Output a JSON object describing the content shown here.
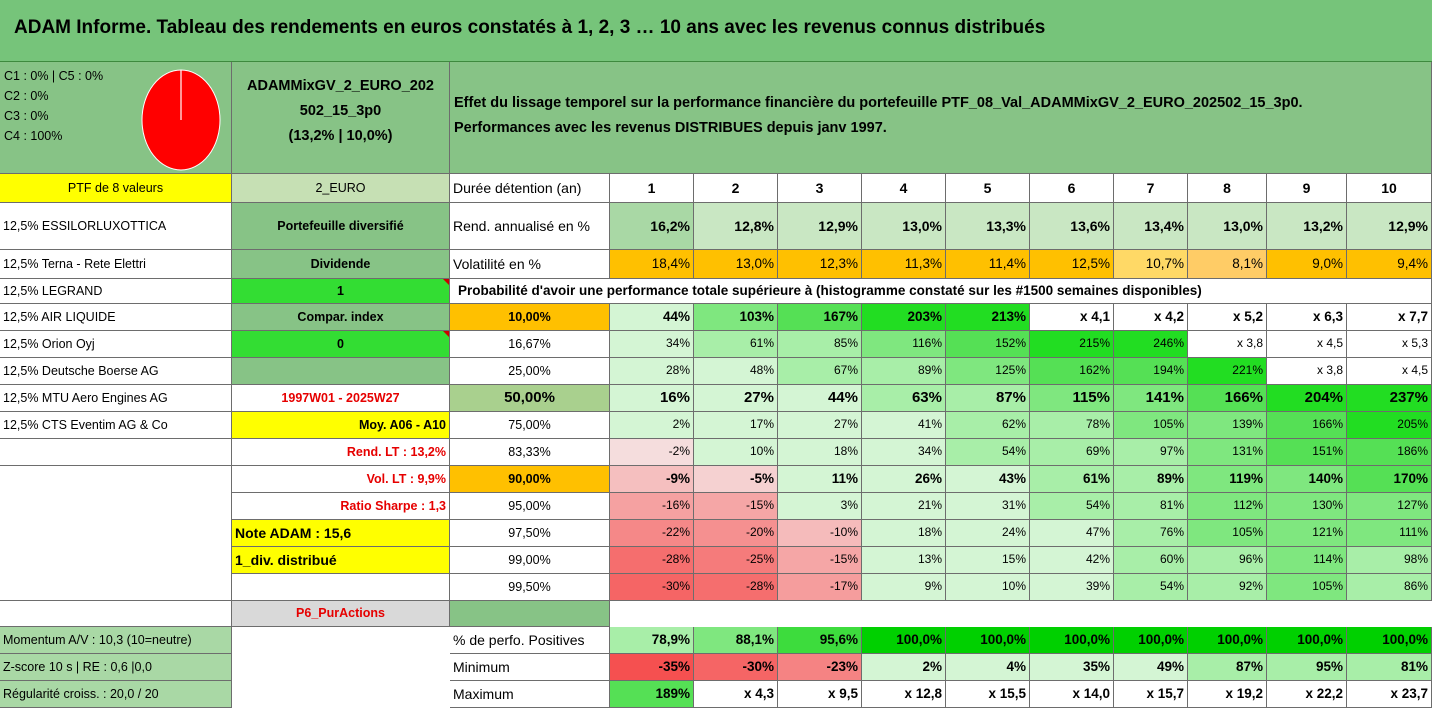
{
  "title": "ADAM Informe. Tableau des rendements en euros constatés à 1, 2, 3 … 10 ans avec les revenus connus distribués",
  "info": {
    "lines": [
      "C1 : 0% | C5 : 0%",
      "C2 : 0%",
      "C3 : 0%",
      "C4 : 100%"
    ],
    "pie_color": "#ff0000",
    "pie_c4_share": 1.0
  },
  "portfolio": {
    "name_line1": "ADAMMixGV_2_EURO_202",
    "name_line2": "502_15_3p0",
    "name_line3": "(13,2% | 10,0%)"
  },
  "header_text": {
    "line1": "Effet du lissage temporel sur la performance financière du portefeuille PTF_08_Val_ADAMMixGV_2_EURO_202502_15_3p0.",
    "line2": "Performances avec les revenus DISTRIBUES depuis janv 1997."
  },
  "col_a": [
    "PTF de 8 valeurs",
    "12,5% ESSILORLUXOTTICA",
    "12,5% Terna - Rete Elettri",
    "12,5% LEGRAND",
    "12,5% AIR LIQUIDE",
    "12,5% Orion Oyj",
    "12,5% Deutsche Boerse AG",
    "12,5% MTU Aero Engines AG",
    "12,5% CTS Eventim AG & Co",
    "",
    "",
    "",
    "",
    "",
    "",
    "",
    "Momentum A/V : 10,3 (10=neutre)",
    "Z-score 10 s | RE : 0,6 |0,0",
    "Régularité croiss. : 20,0 / 20"
  ],
  "col_b": [
    "2_EURO",
    "Portefeuille diversifié",
    "Dividende",
    "1",
    "Compar. index",
    "0",
    "",
    "1997W01 - 2025W27",
    "Moy. A06 - A10",
    "Rend. LT : 13,2%",
    "Vol. LT : 9,9%",
    "Ratio Sharpe : 1,3",
    "Note ADAM : 15,6",
    "1_div. distribué",
    "",
    "P6_PurActions"
  ],
  "durations": {
    "label": "Durée détention (an)",
    "values": [
      "1",
      "2",
      "3",
      "4",
      "5",
      "6",
      "7",
      "8",
      "9",
      "10"
    ]
  },
  "rend": {
    "label": "Rend. annualisé en %",
    "values": [
      "16,2%",
      "12,8%",
      "12,9%",
      "13,0%",
      "13,3%",
      "13,6%",
      "13,4%",
      "13,0%",
      "13,2%",
      "12,9%"
    ]
  },
  "vol": {
    "label": "Volatilité en %",
    "values": [
      "18,4%",
      "13,0%",
      "12,3%",
      "11,3%",
      "11,4%",
      "12,5%",
      "10,7%",
      "8,1%",
      "9,0%",
      "9,4%"
    ]
  },
  "prob_caption": "Probabilité d'avoir une performance totale supérieure à (histogramme constaté sur les #1500 semaines disponibles)",
  "probabilities": [
    {
      "label": "10,00%",
      "values": [
        "44%",
        "103%",
        "167%",
        "203%",
        "213%",
        "x 4,1",
        "x 4,2",
        "x 5,2",
        "x 6,3",
        "x 7,7"
      ]
    },
    {
      "label": "16,67%",
      "values": [
        "34%",
        "61%",
        "85%",
        "116%",
        "152%",
        "215%",
        "246%",
        "x 3,8",
        "x 4,5",
        "x 5,3"
      ]
    },
    {
      "label": "25,00%",
      "values": [
        "28%",
        "48%",
        "67%",
        "89%",
        "125%",
        "162%",
        "194%",
        "221%",
        "x 3,8",
        "x 4,5"
      ]
    },
    {
      "label": "50,00%",
      "values": [
        "16%",
        "27%",
        "44%",
        "63%",
        "87%",
        "115%",
        "141%",
        "166%",
        "204%",
        "237%"
      ]
    },
    {
      "label": "75,00%",
      "values": [
        "2%",
        "17%",
        "27%",
        "41%",
        "62%",
        "78%",
        "105%",
        "139%",
        "166%",
        "205%"
      ]
    },
    {
      "label": "83,33%",
      "values": [
        "-2%",
        "10%",
        "18%",
        "34%",
        "54%",
        "69%",
        "97%",
        "131%",
        "151%",
        "186%"
      ]
    },
    {
      "label": "90,00%",
      "values": [
        "-9%",
        "-5%",
        "11%",
        "26%",
        "43%",
        "61%",
        "89%",
        "119%",
        "140%",
        "170%"
      ]
    },
    {
      "label": "95,00%",
      "values": [
        "-16%",
        "-15%",
        "3%",
        "21%",
        "31%",
        "54%",
        "81%",
        "112%",
        "130%",
        "127%"
      ]
    },
    {
      "label": "97,50%",
      "values": [
        "-22%",
        "-20%",
        "-10%",
        "18%",
        "24%",
        "47%",
        "76%",
        "105%",
        "121%",
        "111%"
      ]
    },
    {
      "label": "99,00%",
      "values": [
        "-28%",
        "-25%",
        "-15%",
        "13%",
        "15%",
        "42%",
        "60%",
        "96%",
        "114%",
        "98%"
      ]
    },
    {
      "label": "99,50%",
      "values": [
        "-30%",
        "-28%",
        "-17%",
        "9%",
        "10%",
        "39%",
        "54%",
        "92%",
        "105%",
        "86%"
      ]
    }
  ],
  "stats": [
    {
      "label": "% de perfo. Positives",
      "values": [
        "78,9%",
        "88,1%",
        "95,6%",
        "100,0%",
        "100,0%",
        "100,0%",
        "100,0%",
        "100,0%",
        "100,0%",
        "100,0%"
      ]
    },
    {
      "label": "Minimum",
      "values": [
        "-35%",
        "-30%",
        "-23%",
        "2%",
        "4%",
        "35%",
        "49%",
        "87%",
        "95%",
        "81%"
      ]
    },
    {
      "label": "Maximum",
      "values": [
        "189%",
        "x 4,3",
        "x 9,5",
        "x 12,8",
        "x 15,5",
        "x 14,0",
        "x 15,7",
        "x 19,2",
        "x 22,2",
        "x 23,7"
      ]
    }
  ],
  "colors": {
    "title_green": "#76c47a",
    "panel_green": "#87c386",
    "yellow": "#ffff00",
    "orange": "#ffc000",
    "bright_green": "#00d000",
    "mid_green": "#22e022",
    "light_green": "#a9d8a5",
    "pale_green": "#c9e7c3",
    "label_red": "#e60000",
    "pie_red": "#ff0000"
  }
}
